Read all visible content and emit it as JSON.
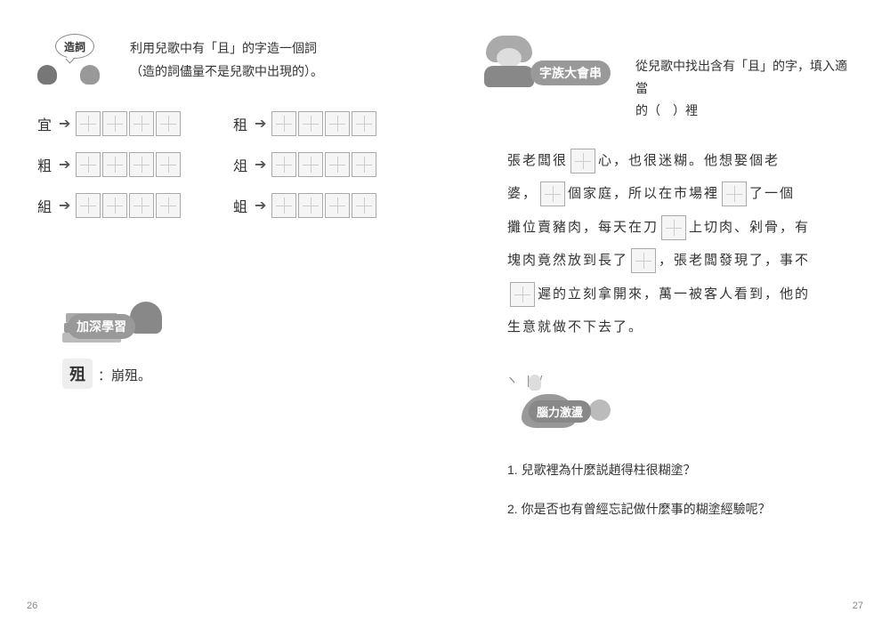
{
  "left": {
    "section1": {
      "badge": "造詞",
      "intro_line1": "利用兒歌中有「且」的字造一個詞",
      "intro_line2": "（造的詞儘量不是兒歌中出現的）。",
      "rows": [
        {
          "char": "宜",
          "boxes": 4
        },
        {
          "char": "租",
          "boxes": 4
        },
        {
          "char": "粗",
          "boxes": 4
        },
        {
          "char": "俎",
          "boxes": 4
        },
        {
          "char": "組",
          "boxes": 4
        },
        {
          "char": "蛆",
          "boxes": 4
        }
      ]
    },
    "section2": {
      "badge": "加深學習",
      "char": "殂",
      "def": "：崩殂。"
    },
    "page_number": "26"
  },
  "right": {
    "section1": {
      "badge": "字族大會串",
      "intro_line1": "從兒歌中找出含有「且」的字，填入適當",
      "intro_line2": "的（　）裡",
      "passage": {
        "p1a": "張老闆很",
        "p1b": "心，也很迷糊。他想娶個老",
        "p2a": "婆，",
        "p2b": "個家庭，所以在市場裡",
        "p2c": "了一個",
        "p3a": "攤位賣豬肉，每天在刀",
        "p3b": "上切肉、剁骨，有",
        "p4a": "塊肉竟然放到長了",
        "p4b": "，張老闆發現了，事不",
        "p5a": "",
        "p5b": "遲的立刻拿開來，萬一被客人看到，他的",
        "p6": "生意就做不下去了。"
      }
    },
    "section2": {
      "badge": "腦力激盪",
      "q1": "1. 兒歌裡為什麼説趙得柱很糊塗？",
      "q2": "2. 你是否也有曾經忘記做什麼事的糊塗經驗呢？"
    },
    "page_number": "27"
  }
}
